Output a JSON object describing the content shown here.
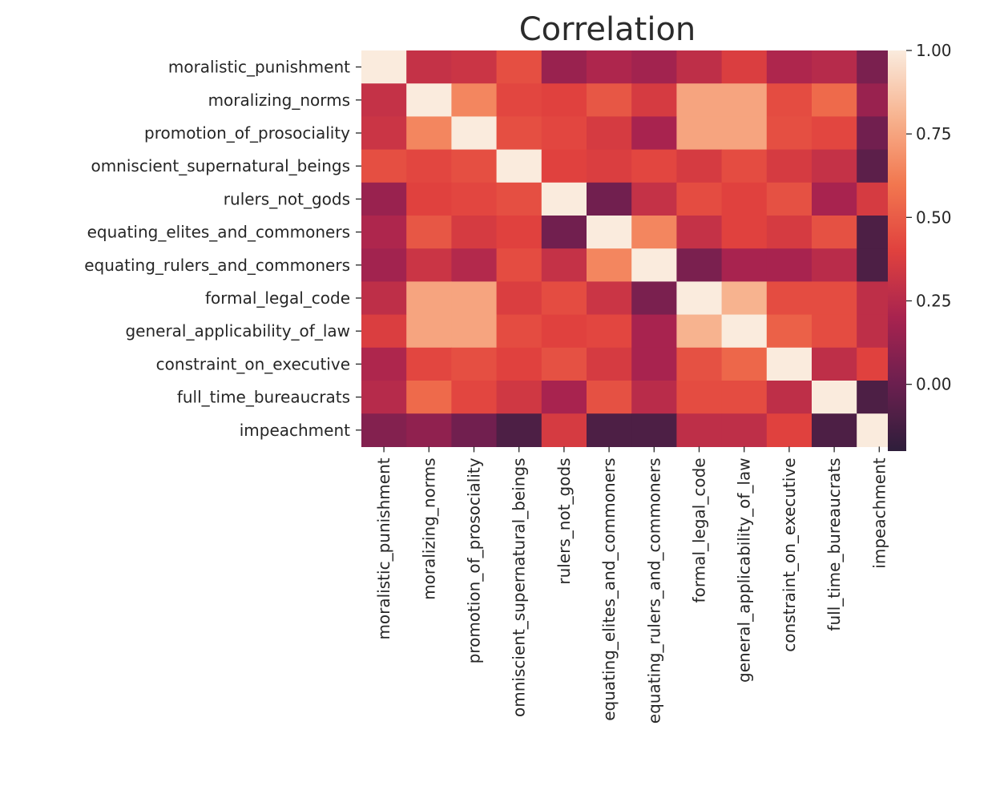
{
  "chart_data": {
    "type": "heatmap",
    "title": "Correlation",
    "xlabel": "",
    "ylabel": "",
    "labels": [
      "moralistic_punishment",
      "moralizing_norms",
      "promotion_of_prosociality",
      "omniscient_supernatural_beings",
      "rulers_not_gods",
      "equating_elites_and_commoners",
      "equating_rulers_and_commoners",
      "formal_legal_code",
      "general_applicability_of_law",
      "constraint_on_executive",
      "full_time_bureaucrats",
      "impeachment"
    ],
    "matrix": [
      [
        1.0,
        0.3,
        0.32,
        0.45,
        0.15,
        0.22,
        0.18,
        0.28,
        0.38,
        0.22,
        0.25,
        0.05
      ],
      [
        0.3,
        1.0,
        0.65,
        0.42,
        0.4,
        0.48,
        0.36,
        0.75,
        0.75,
        0.44,
        0.55,
        0.15
      ],
      [
        0.32,
        0.65,
        1.0,
        0.45,
        0.42,
        0.36,
        0.2,
        0.75,
        0.75,
        0.45,
        0.42,
        0.02
      ],
      [
        0.45,
        0.42,
        0.45,
        1.0,
        0.4,
        0.38,
        0.42,
        0.36,
        0.44,
        0.36,
        0.3,
        -0.05
      ],
      [
        0.15,
        0.4,
        0.42,
        0.45,
        1.0,
        0.02,
        0.3,
        0.44,
        0.4,
        0.46,
        0.2,
        0.36
      ],
      [
        0.22,
        0.48,
        0.36,
        0.4,
        0.02,
        1.0,
        0.65,
        0.3,
        0.4,
        0.36,
        0.46,
        -0.1
      ],
      [
        0.18,
        0.32,
        0.24,
        0.44,
        0.3,
        0.65,
        1.0,
        0.05,
        0.2,
        0.2,
        0.26,
        -0.1
      ],
      [
        0.28,
        0.75,
        0.75,
        0.38,
        0.44,
        0.32,
        0.05,
        1.0,
        0.8,
        0.44,
        0.44,
        0.28
      ],
      [
        0.38,
        0.75,
        0.75,
        0.44,
        0.4,
        0.42,
        0.2,
        0.8,
        1.0,
        0.52,
        0.44,
        0.28
      ],
      [
        0.22,
        0.42,
        0.45,
        0.4,
        0.46,
        0.36,
        0.2,
        0.46,
        0.54,
        1.0,
        0.28,
        0.4
      ],
      [
        0.25,
        0.55,
        0.42,
        0.34,
        0.2,
        0.46,
        0.26,
        0.44,
        0.44,
        0.28,
        1.0,
        -0.1
      ],
      [
        0.08,
        0.12,
        0.02,
        -0.1,
        0.36,
        -0.1,
        -0.1,
        0.28,
        0.28,
        0.4,
        -0.1,
        1.0
      ]
    ],
    "colorbar": {
      "min": -0.2,
      "max": 1.0,
      "ticks": [
        0.0,
        0.25,
        0.5,
        0.75,
        1.0
      ],
      "tick_labels": [
        "0.00",
        "0.25",
        "0.50",
        "0.75",
        "1.00"
      ]
    },
    "grid": false,
    "colormap": [
      "#2e1e3b",
      "#6b1f4f",
      "#a8234f",
      "#e0413e",
      "#f2774f",
      "#f7b38f",
      "#faebdd"
    ]
  }
}
